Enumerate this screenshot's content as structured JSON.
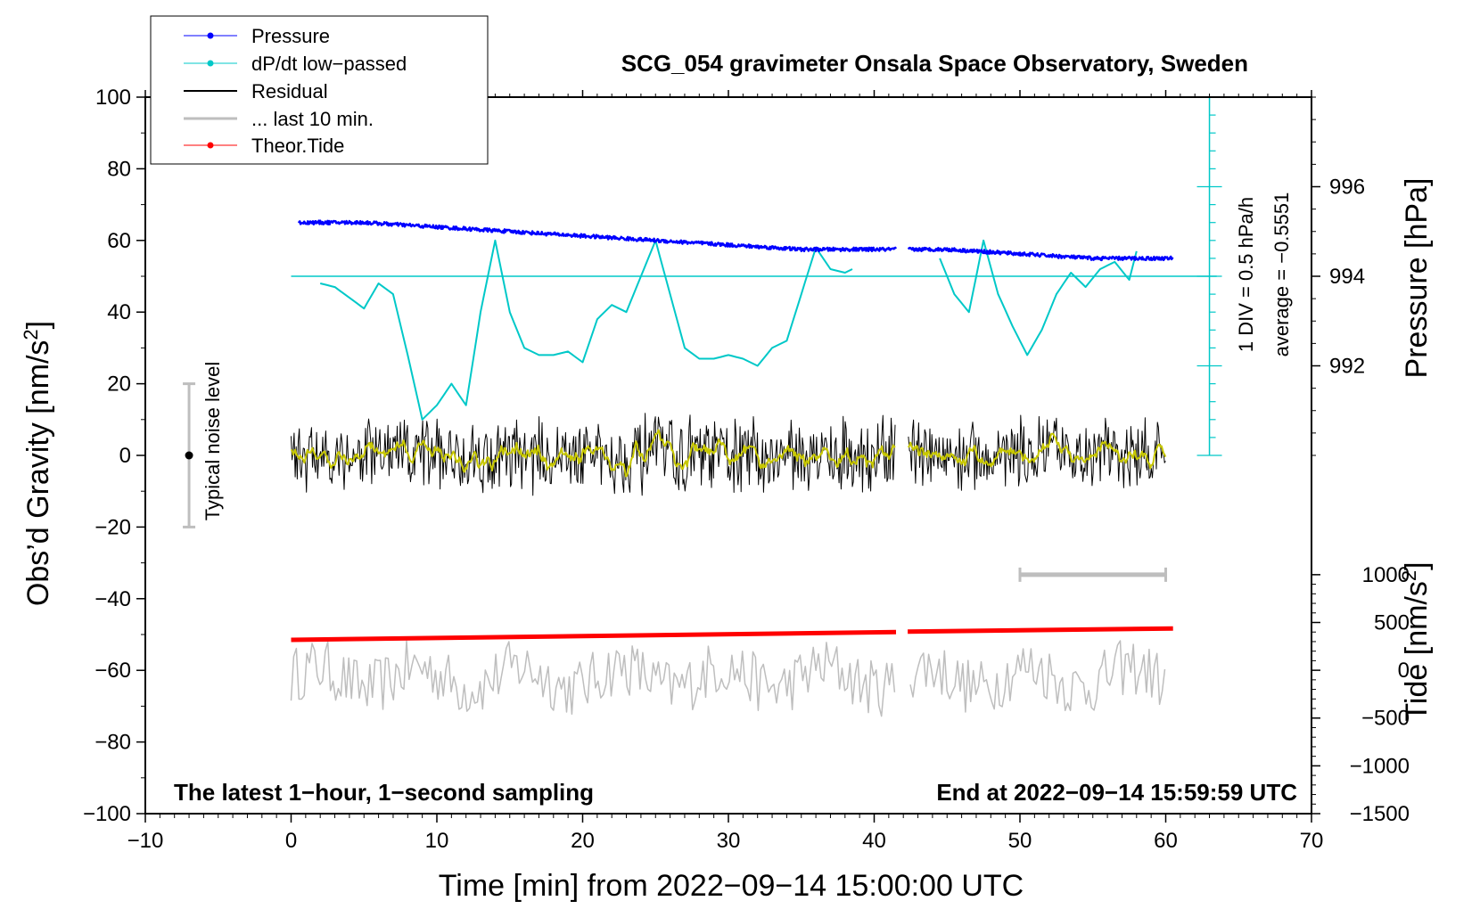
{
  "chart_data": {
    "type": "line",
    "title": "SCG_054 gravimeter Onsala Space Observatory, Sweden",
    "xlabel": "Time [min] from 2022−09−14 15:00:00 UTC",
    "ylabel_left_main": "Obs’d Gravity [nm/s",
    "ylabel_left_sup": "2",
    "ylabel_left_end": "]",
    "ylabel_right_top": "Pressure [hPa]",
    "ylabel_right_bottom_main": "Tide [nm/s",
    "ylabel_right_bottom_sup": "2",
    "ylabel_right_bottom_end": "]",
    "xlim": [
      -10,
      70
    ],
    "ylim": [
      -100,
      100
    ],
    "x_ticks": [
      -10,
      0,
      10,
      20,
      30,
      40,
      50,
      60,
      70
    ],
    "x_tick_labels": [
      "−10",
      "0",
      "10",
      "20",
      "30",
      "40",
      "50",
      "60",
      "70"
    ],
    "y_ticks": [
      -100,
      -80,
      -60,
      -40,
      -20,
      0,
      20,
      40,
      60,
      80,
      100
    ],
    "y_tick_labels": [
      "−100",
      "−80",
      "−60",
      "−40",
      "−20",
      "0",
      "20",
      "40",
      "60",
      "80",
      "100"
    ],
    "pressure_axis": {
      "ticks": [
        992,
        994,
        996
      ],
      "tick_labels": [
        "992",
        "994",
        "996"
      ],
      "range_hpa": [
        990,
        998
      ],
      "ylim_map": [
        0,
        100
      ]
    },
    "tide_axis": {
      "ticks": [
        -1500,
        -1000,
        -500,
        0,
        500,
        1000
      ],
      "tick_labels": [
        "−1500",
        "−1000",
        "−500",
        "0",
        "500",
        "1000"
      ],
      "range": [
        -1500,
        1000
      ],
      "ylim_map": [
        -100,
        -33.3
      ]
    },
    "legend": [
      {
        "label": "Pressure",
        "color": "#0000ff",
        "marker": true
      },
      {
        "label": "dP/dt low−passed",
        "color": "#00c8c8",
        "marker": true
      },
      {
        "label": "Residual",
        "color": "#000000",
        "marker": false
      },
      {
        "label": "... last 10 min.",
        "color": "#bebebe",
        "marker": false
      },
      {
        "label": "Theor.Tide",
        "color": "#ff0000",
        "marker": true
      }
    ],
    "legend_position": "top-left",
    "annotations": {
      "left_bottom": "The latest 1−hour, 1−second sampling",
      "right_bottom": "End at 2022−09−14 15:59:59 UTC",
      "noise": "Typical noise level",
      "div_scale": "1 DIV = 0.5 hPa/h",
      "average": "average = −0.5551"
    },
    "data_gap_min": [
      41.5,
      42.3
    ],
    "series": [
      {
        "name": "Pressure",
        "color": "#0000ff",
        "unit": "hPa",
        "x": [
          0,
          5,
          10,
          15,
          20,
          25,
          30,
          35,
          41.5,
          42.3,
          45,
          50,
          55,
          60.5
        ],
        "y": [
          995.2,
          995.2,
          995.1,
          995.0,
          994.9,
          994.8,
          994.7,
          994.6,
          994.6,
          994.6,
          994.6,
          994.5,
          994.4,
          994.4
        ]
      },
      {
        "name": "dP/dt low−passed",
        "color": "#00c8c8",
        "unit": "nm/s2-plot",
        "x": [
          2,
          3,
          4,
          5,
          6,
          7,
          8,
          9,
          10,
          11,
          12,
          13,
          14,
          15,
          16,
          17,
          18,
          19,
          20,
          21,
          22,
          23,
          24,
          25,
          26,
          27,
          28,
          29,
          30,
          31,
          32,
          33,
          34,
          35,
          36,
          37,
          38,
          38.5,
          44.5,
          45.5,
          46.5,
          47.5,
          48.5,
          49.5,
          50.5,
          51.5,
          52.5,
          53.5,
          54.5,
          55.5,
          56.5,
          57.5,
          58
        ],
        "y": [
          48,
          47,
          44,
          41,
          48,
          45,
          28,
          10,
          14,
          20,
          14,
          40,
          60,
          40,
          30,
          28,
          28,
          29,
          26,
          38,
          42,
          40,
          50,
          60,
          45,
          30,
          27,
          27,
          28,
          27,
          25,
          30,
          32,
          45,
          58,
          52,
          51,
          52,
          55,
          45,
          40,
          60,
          45,
          36,
          28,
          35,
          45,
          51,
          47,
          52,
          54,
          49,
          57
        ]
      },
      {
        "name": "Residual",
        "color": "#000000",
        "noise_amplitude_nm_s2": 10,
        "x_range": [
          0,
          60
        ],
        "mean": 0
      },
      {
        "name": "... last 10 min.",
        "color": "#bebebe",
        "offset": -62,
        "noise_amplitude_nm_s2": 8,
        "x_range": [
          0,
          60
        ]
      },
      {
        "name": "Theor.Tide",
        "color": "#ff0000",
        "unit": "nm/s2",
        "x": [
          0,
          41.5,
          42.3,
          60.5
        ],
        "y": [
          -51.5,
          -49.3,
          -49.2,
          -48.3
        ]
      }
    ],
    "noise_bar": {
      "x": -7,
      "center": 0,
      "low": -20,
      "high": 20
    },
    "gray_bar": {
      "x": [
        50,
        60
      ],
      "y": -33.3
    }
  }
}
